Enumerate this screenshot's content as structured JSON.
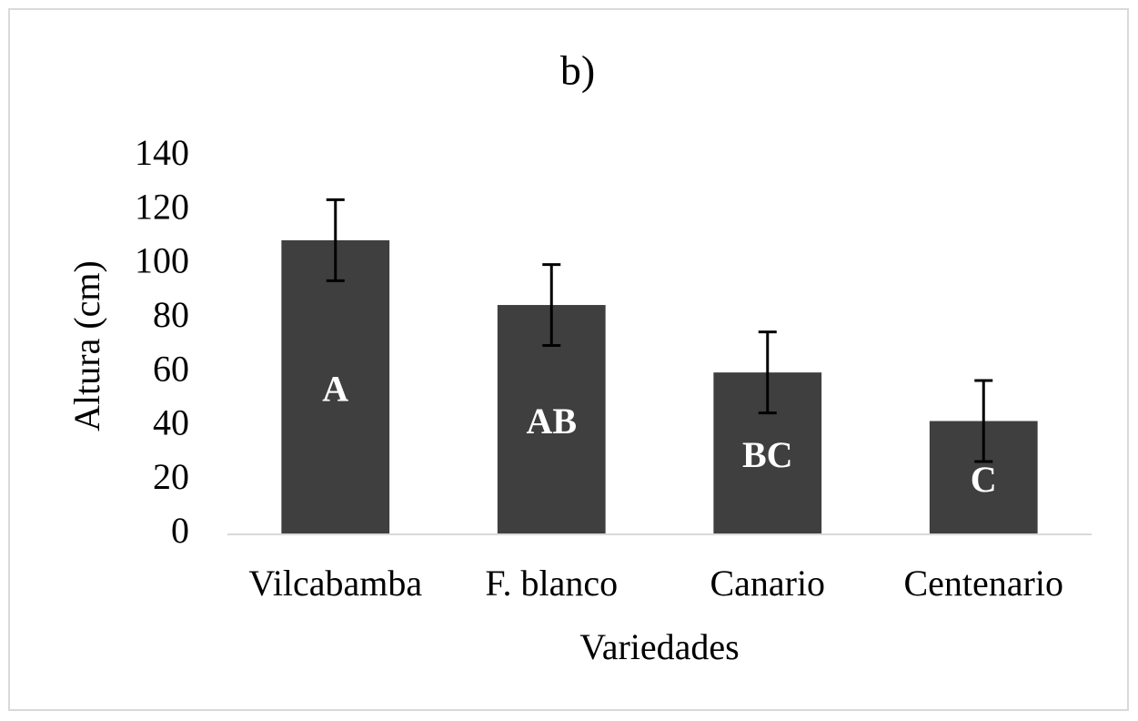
{
  "chart_data": {
    "type": "bar",
    "title": "b)",
    "categories": [
      "Vilcabamba",
      "F. blanco",
      "Canario",
      "Centenario"
    ],
    "values": [
      109,
      85,
      60,
      42
    ],
    "errors": [
      15,
      15,
      15,
      15
    ],
    "letters": [
      "A",
      "AB",
      "BC",
      "C"
    ],
    "color": "#3f3f3f",
    "ylim": [
      0,
      140
    ],
    "yticks": [
      0,
      20,
      40,
      60,
      80,
      100,
      120,
      140
    ],
    "ylabel": "Altura (cm)",
    "xlabel": "Variedades",
    "grid": false
  }
}
